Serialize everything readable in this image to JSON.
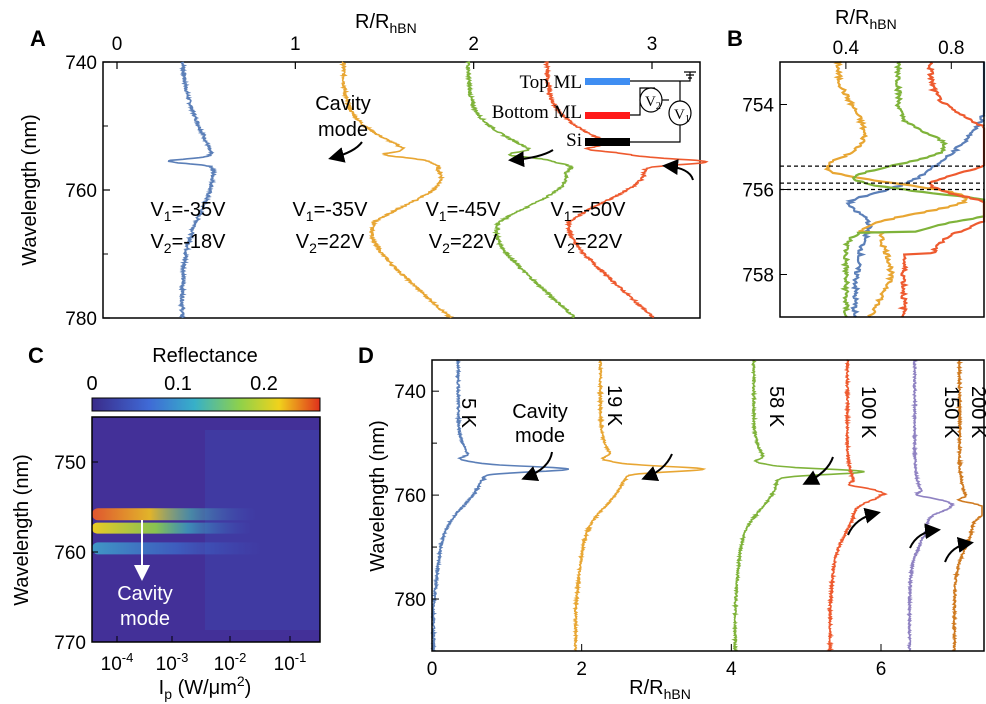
{
  "colors": {
    "c1": "#5b7fb8",
    "c2": "#e8a633",
    "c3": "#7fb33a",
    "c4": "#ee5a2f",
    "c5": "#8f82c2",
    "c6": "#cf7a20"
  },
  "panels": {
    "A": {
      "letter": "A",
      "title": "R/R",
      "title_sub": "hBN"
    },
    "B": {
      "letter": "B",
      "title": "R/R",
      "title_sub": "hBN"
    },
    "C": {
      "letter": "C"
    },
    "D": {
      "letter": "D",
      "xlabel": "R/R",
      "xlabel_sub": "hBN"
    }
  },
  "annotations": {
    "cavity_mode_A_line1": "Cavity",
    "cavity_mode_A_line2": "mode",
    "cavity_mode_C_line1": "Cavity",
    "cavity_mode_C_line2": "mode",
    "cavity_mode_D_line1": "Cavity",
    "cavity_mode_D_line2": "mode",
    "voltages": [
      {
        "v1": "V1=-35V",
        "v2": "V2=-18V"
      },
      {
        "v1": "V1=-35V",
        "v2": "V2=22V"
      },
      {
        "v1": "V1=-45V",
        "v2": "V2=22V"
      },
      {
        "v1": "V1=-50V",
        "v2": "V2=22V"
      }
    ],
    "inset_labels": {
      "top": "Top ML",
      "bottom": "Bottom ML",
      "si": "Si",
      "v2": "V",
      "v2_sub": "2",
      "v1": "V",
      "v1_sub": "1"
    }
  },
  "chart_data": [
    {
      "panel": "A",
      "type": "line",
      "title": "R/RhBN",
      "ylabel": "Wavelength (nm)",
      "xlim": [
        0,
        3.35
      ],
      "ylim": [
        740,
        780
      ],
      "x_ticks": [
        "0",
        "1",
        "2",
        "3"
      ],
      "y_ticks": [
        "740",
        "760",
        "780"
      ],
      "series": [
        {
          "offset": 0.0,
          "baseline": 0.5,
          "peak_wavelength": 755.5,
          "peak_value": 0.2,
          "curve": "dip"
        },
        {
          "offset": 1.0,
          "baseline": 0.9,
          "peak_wavelength": 756.5,
          "peak_value": 1.8,
          "curve": "peak"
        },
        {
          "offset": 1.7,
          "baseline": 0.9,
          "peak_wavelength": 756.5,
          "peak_value": 2.55,
          "curve": "peak"
        },
        {
          "offset": 2.2,
          "baseline": 0.7,
          "peak_wavelength": 755.6,
          "peak_value": 3.3,
          "curve": "peak"
        }
      ]
    },
    {
      "panel": "B",
      "type": "line",
      "title": "R/RhBN",
      "xlim": [
        0.15,
        1.0
      ],
      "ylim": [
        753,
        759
      ],
      "x_ticks": [
        "0.4",
        "0.8"
      ],
      "y_ticks": [
        "754",
        "756",
        "758"
      ],
      "dashed_lines_nm": [
        755.45,
        755.85,
        756.0
      ]
    },
    {
      "panel": "C",
      "type": "heatmap",
      "colorbar_label": "Reflectance",
      "colorbar_ticks": [
        "0",
        "0.1",
        "0.2"
      ],
      "ylabel": "Wavelength (nm)",
      "xlabel": "Ip (W/μm2)",
      "ylim": [
        745,
        770
      ],
      "x_ticks": [
        "10-4",
        "10-3",
        "10-2",
        "10-1"
      ],
      "y_ticks": [
        "750",
        "760",
        "770"
      ],
      "bands_nm": [
        755.8,
        757.5,
        759.5
      ]
    },
    {
      "panel": "D",
      "type": "line",
      "ylabel": "Wavelength (nm)",
      "xlabel": "R/RhBN",
      "xlim": [
        0,
        7.4
      ],
      "ylim": [
        734,
        790
      ],
      "x_ticks": [
        "0",
        "2",
        "4",
        "6"
      ],
      "y_ticks": [
        "740",
        "760",
        "780"
      ],
      "series": [
        {
          "name": "5 K",
          "peak_wavelength": 755,
          "peak_x": 1.6
        },
        {
          "name": "19 K",
          "peak_wavelength": 755,
          "peak_x": 3.3
        },
        {
          "name": "58 K",
          "peak_wavelength": 755.5,
          "peak_x": 5.2
        },
        {
          "name": "100 K",
          "peak_wavelength": 760,
          "peak_x": 6.0
        },
        {
          "name": "150 K",
          "peak_wavelength": 762,
          "peak_x": 6.8
        },
        {
          "name": "200 K",
          "peak_wavelength": 763,
          "peak_x": 7.2
        }
      ]
    }
  ]
}
